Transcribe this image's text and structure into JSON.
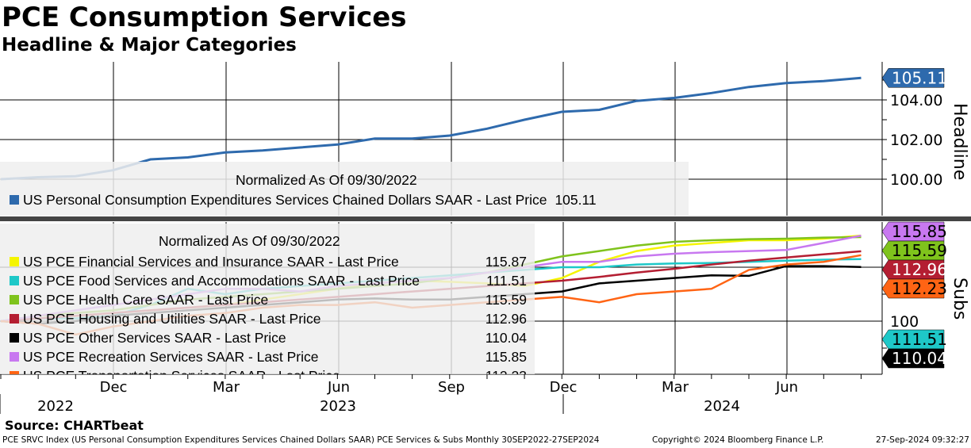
{
  "header": {
    "title": "PCE Consumption Services",
    "subtitle": "Headline & Major Categories"
  },
  "chart_data": [
    {
      "type": "line",
      "panel": "Headline",
      "ylabel": "Headline",
      "ylim": [
        98.1,
        105.9
      ],
      "yticks": [
        "100.00",
        "102.00",
        "104.00"
      ],
      "legend": {
        "title": "Normalized As Of 09/30/2022",
        "placement": "bottom-left"
      },
      "x": [
        "Sep 2022",
        "Oct 2022",
        "Nov 2022",
        "Dec 2022",
        "Jan 2023",
        "Feb 2023",
        "Mar 2023",
        "Apr 2023",
        "May 2023",
        "Jun 2023",
        "Jul 2023",
        "Aug 2023",
        "Sep 2023",
        "Oct 2023",
        "Nov 2023",
        "Dec 2023",
        "Jan 2024",
        "Feb 2024",
        "Mar 2024",
        "Apr 2024",
        "May 2024",
        "Jun 2024",
        "Jul 2024",
        "Aug 2024"
      ],
      "series": [
        {
          "name": "US Personal Consumption Expenditures Services Chained Dollars SAAR - Last Price",
          "last": "105.11",
          "color": "#2e6aad",
          "values": [
            100,
            100.1,
            100.15,
            100.45,
            101.0,
            101.1,
            101.35,
            101.45,
            101.6,
            101.75,
            102.05,
            102.05,
            102.2,
            102.55,
            103.0,
            103.4,
            103.5,
            103.95,
            104.1,
            104.35,
            104.65,
            104.85,
            104.95,
            105.11
          ]
        }
      ]
    },
    {
      "type": "line",
      "panel": "Subs",
      "ylabel": "Subs",
      "ylim": [
        90.4,
        118.6
      ],
      "yticks": [
        "100"
      ],
      "legend": {
        "title": "Normalized As Of 09/30/2022",
        "placement": "left"
      },
      "series": [
        {
          "name": "US PCE Financial Services and Insurance SAAR - Last Price",
          "last": "115.87",
          "color": "#f5f500",
          "values": [
            100,
            100.5,
            101,
            101.5,
            102,
            102.5,
            103,
            104,
            105,
            106,
            107,
            107.5,
            107.3,
            107,
            106.5,
            108,
            111,
            113,
            114,
            114.5,
            115,
            115,
            115.3,
            115.87
          ]
        },
        {
          "name": "US PCE Food Services and Accommodations SAAR - Last Price",
          "last": "111.51",
          "color": "#1ec8c8",
          "values": [
            100,
            100.5,
            100.5,
            101,
            103,
            106,
            105,
            106,
            106.5,
            107,
            107.5,
            108,
            108.5,
            109,
            109.5,
            110,
            110,
            110.5,
            110.7,
            110.8,
            111,
            111.2,
            111.4,
            111.51
          ]
        },
        {
          "name": "US PCE Health Care SAAR - Last Price",
          "last": "115.59",
          "color": "#7fc31c",
          "values": [
            100,
            101,
            101.5,
            102,
            103,
            104,
            104.5,
            105,
            105.5,
            106,
            106.5,
            107,
            108,
            109,
            110.5,
            112,
            113,
            114,
            114.7,
            115,
            115.2,
            115.3,
            115.5,
            115.59
          ]
        },
        {
          "name": "US PCE Housing and Utilities SAAR - Last Price",
          "last": "112.96",
          "color": "#b41e32",
          "values": [
            100,
            100.5,
            101,
            101.5,
            102,
            102.5,
            103,
            103.5,
            104,
            104.5,
            105,
            105.5,
            106,
            106.5,
            107,
            107.5,
            108.2,
            109,
            109.7,
            110.5,
            111.2,
            111.8,
            112.4,
            112.96
          ]
        },
        {
          "name": "US PCE Other Services SAAR - Last Price",
          "last": "110.04",
          "color": "#000000",
          "values": [
            100,
            99.5,
            100,
            101,
            101.5,
            102,
            102.5,
            103,
            103.5,
            104,
            104.2,
            104,
            104,
            104.5,
            105,
            105.5,
            107,
            107.5,
            108,
            108.5,
            108.4,
            110.2,
            110.2,
            110.04
          ]
        },
        {
          "name": "US PCE Recreation Services SAAR - Last Price",
          "last": "115.85",
          "color": "#c878f0",
          "values": [
            100,
            101,
            102,
            103,
            104,
            105,
            106,
            106,
            105.5,
            106.5,
            107,
            107.5,
            108,
            109,
            110,
            111,
            111,
            112,
            112.5,
            112.8,
            113,
            113.2,
            114.5,
            115.85
          ]
        },
        {
          "name": "US PCE Transportation Services SAAR - Last Price",
          "last": "112.23",
          "color": "#ff6414",
          "values": [
            100,
            99.5,
            97.5,
            99,
            100,
            101,
            101.5,
            102.5,
            103,
            103,
            103.5,
            102.5,
            103,
            103.5,
            104,
            104.5,
            103.5,
            105,
            105.5,
            106,
            109.5,
            110.5,
            111,
            112.23
          ]
        }
      ]
    }
  ],
  "xaxis": {
    "months": [
      "Dec",
      "Mar",
      "Jun",
      "Sep",
      "Dec",
      "Mar",
      "Jun"
    ],
    "years": [
      "2022",
      "2023",
      "2024"
    ]
  },
  "footer": {
    "source": "Source: CHARTbeat",
    "ticker": "PCE SRVC Index (US Personal Consumption Expenditures Services Chained Dollars SAAR) PCE Services & Subs  Monthly 30SEP2022-27SEP2024",
    "copyright": "Copyright© 2024 Bloomberg Finance L.P.",
    "timestamp": "27-Sep-2024 09:32:27"
  }
}
